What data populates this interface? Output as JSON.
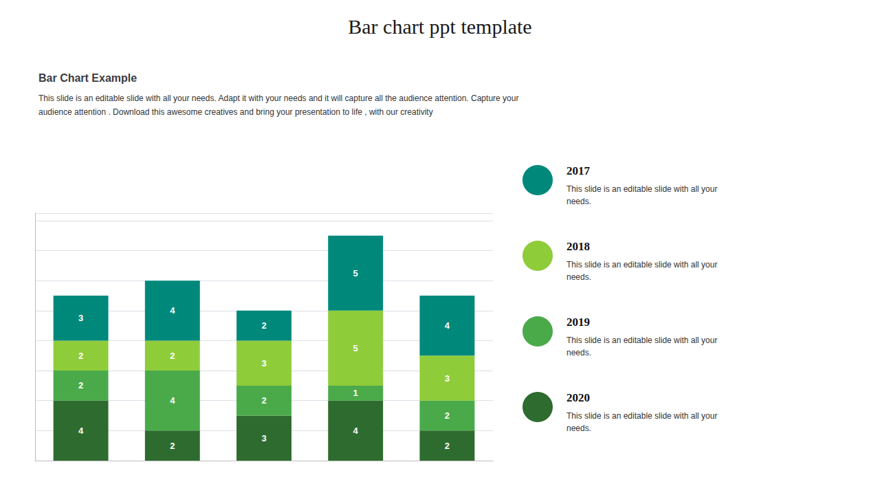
{
  "chart_data": {
    "type": "bar",
    "title": "Bar chart ppt template",
    "subtitle": "Bar Chart Example",
    "description": "This slide is an editable slide with all your needs. Adapt it with your needs and it will capture all the audience attention. Capture your\naudience attention . Download this awesome creatives and bring your presentation to life , with our creativity",
    "categories": [
      null,
      null,
      null,
      null,
      null
    ],
    "series": [
      {
        "name": "2020",
        "color": "#2e6b2e",
        "values": [
          4,
          2,
          3,
          4,
          2
        ],
        "description": "This slide is an editable slide with all your\nneeds."
      },
      {
        "name": "2019",
        "color": "#4aaa4a",
        "values": [
          2,
          4,
          2,
          1,
          2
        ],
        "description": "This slide is an editable slide with all your\nneeds."
      },
      {
        "name": "2018",
        "color": "#8fcc3a",
        "values": [
          2,
          2,
          3,
          5,
          3
        ],
        "description": "This slide is an editable slide with all your\nneeds."
      },
      {
        "name": "2017",
        "color": "#00897b",
        "values": [
          3,
          4,
          2,
          5,
          4
        ],
        "description": "This slide is an editable slide with all your\nneeds."
      }
    ],
    "stacked": true,
    "data_labels": true,
    "ylim": [
      0,
      16.5
    ],
    "yticks": [
      0,
      2,
      4,
      6,
      8,
      10,
      12,
      14,
      16
    ],
    "grid": true,
    "tick_labels": false,
    "legend": "right"
  }
}
